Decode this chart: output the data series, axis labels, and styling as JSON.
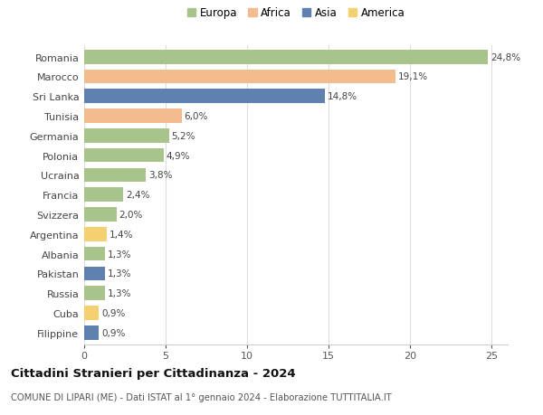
{
  "categories": [
    "Filippine",
    "Cuba",
    "Russia",
    "Pakistan",
    "Albania",
    "Argentina",
    "Svizzera",
    "Francia",
    "Ucraina",
    "Polonia",
    "Germania",
    "Tunisia",
    "Sri Lanka",
    "Marocco",
    "Romania"
  ],
  "values": [
    0.9,
    0.9,
    1.3,
    1.3,
    1.3,
    1.4,
    2.0,
    2.4,
    3.8,
    4.9,
    5.2,
    6.0,
    14.8,
    19.1,
    24.8
  ],
  "labels": [
    "0,9%",
    "0,9%",
    "1,3%",
    "1,3%",
    "1,3%",
    "1,4%",
    "2,0%",
    "2,4%",
    "3,8%",
    "4,9%",
    "5,2%",
    "6,0%",
    "14,8%",
    "19,1%",
    "24,8%"
  ],
  "continents": [
    "Asia",
    "America",
    "Europa",
    "Asia",
    "Europa",
    "America",
    "Europa",
    "Europa",
    "Europa",
    "Europa",
    "Europa",
    "Africa",
    "Asia",
    "Africa",
    "Europa"
  ],
  "continent_colors": {
    "Europa": "#a8c48a",
    "Africa": "#f2bc8e",
    "Asia": "#6080b0",
    "America": "#f5d070"
  },
  "legend_order": [
    "Europa",
    "Africa",
    "Asia",
    "America"
  ],
  "title": "Cittadini Stranieri per Cittadinanza - 2024",
  "subtitle": "COMUNE DI LIPARI (ME) - Dati ISTAT al 1° gennaio 2024 - Elaborazione TUTTITALIA.IT",
  "xlim": [
    0,
    26
  ],
  "xticks": [
    0,
    5,
    10,
    15,
    20,
    25
  ],
  "background_color": "#ffffff",
  "grid_color": "#dddddd",
  "bar_height": 0.72
}
